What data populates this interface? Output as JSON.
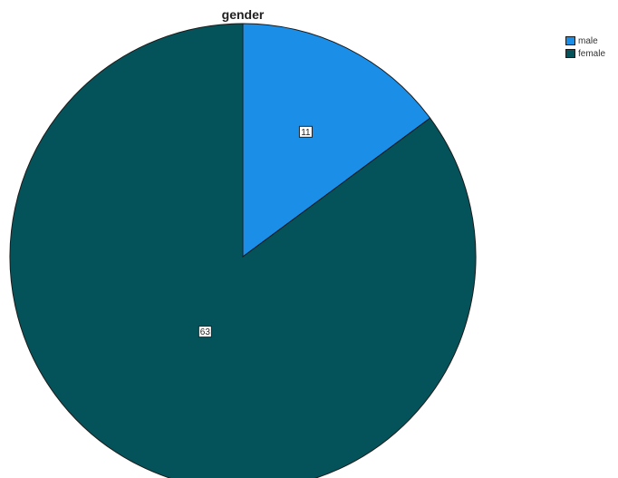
{
  "chart_data": {
    "type": "pie",
    "title": "gender",
    "categories": [
      "male",
      "female"
    ],
    "values": [
      11,
      63
    ],
    "data_labels": [
      "11",
      "63"
    ],
    "colors": [
      "#1b8fe8",
      "#05535a"
    ],
    "start_angle_deg": 0,
    "direction": "clockwise",
    "legend_placement": "top-right"
  }
}
